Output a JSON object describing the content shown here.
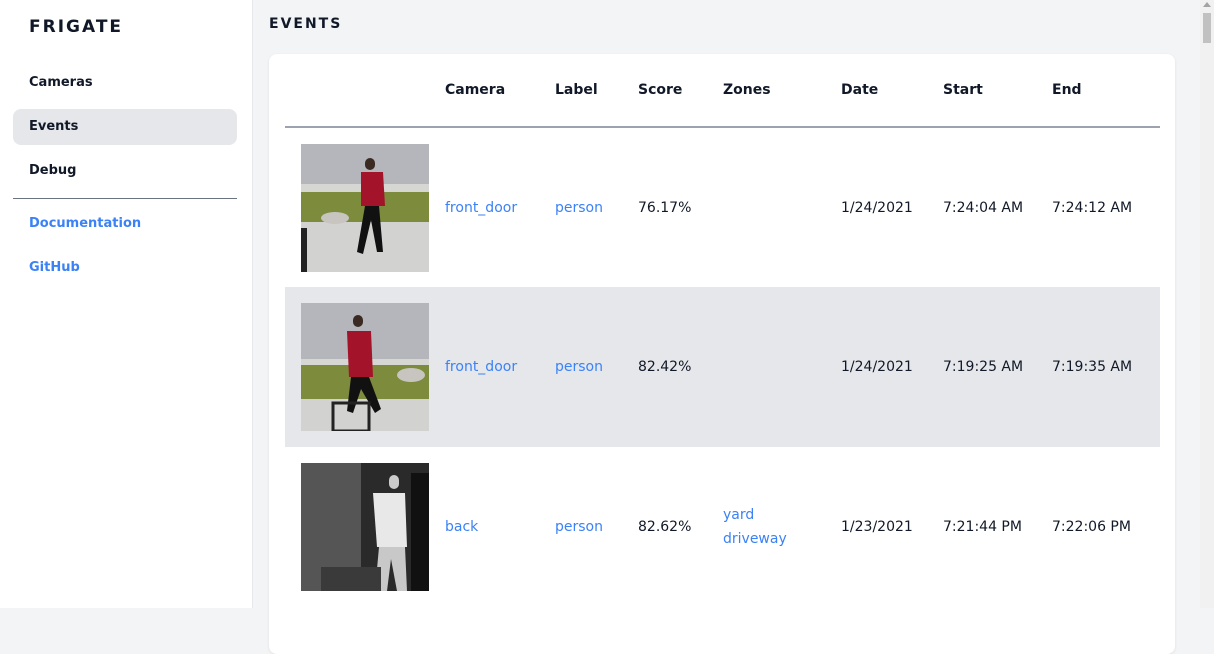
{
  "app": {
    "title": "FRIGATE"
  },
  "sidebar": {
    "items": [
      {
        "label": "Cameras"
      },
      {
        "label": "Events",
        "active": true
      },
      {
        "label": "Debug"
      }
    ],
    "links": [
      {
        "label": "Documentation"
      },
      {
        "label": "GitHub"
      }
    ]
  },
  "page": {
    "title": "EVENTS"
  },
  "table": {
    "headers": [
      "",
      "Camera",
      "Label",
      "Score",
      "Zones",
      "Date",
      "Start",
      "End"
    ],
    "rows": [
      {
        "camera": "front_door",
        "label": "person",
        "score": "76.17%",
        "zones": [
          "",
          ""
        ],
        "date": "1/24/2021",
        "start": "7:24:04 AM",
        "end": "7:24:12 AM",
        "thumb": "color"
      },
      {
        "camera": "front_door",
        "label": "person",
        "score": "82.42%",
        "zones": [
          "",
          ""
        ],
        "date": "1/24/2021",
        "start": "7:19:25 AM",
        "end": "7:19:35 AM",
        "thumb": "color"
      },
      {
        "camera": "back",
        "label": "person",
        "score": "82.62%",
        "zones": [
          "yard",
          "driveway"
        ],
        "date": "1/23/2021",
        "start": "7:21:44 PM",
        "end": "7:22:06 PM",
        "thumb": "night"
      }
    ]
  },
  "colors": {
    "accent": "#3b82f6",
    "active_bg": "#e5e7eb",
    "page_bg": "#f3f4f6"
  }
}
